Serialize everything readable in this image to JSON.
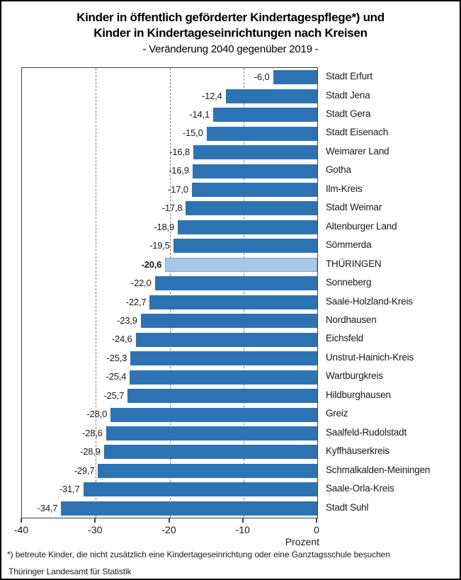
{
  "title": {
    "line1": "Kinder in öffentlich geförderter Kindertagespflege*) und",
    "line2": "Kinder in Kindertageseinrichtungen nach Kreisen",
    "subtitle": "- Veränderung 2040 gegenüber 2019 -"
  },
  "chart_data": {
    "type": "bar",
    "orientation": "horizontal",
    "title": "Kinder in öffentlich geförderter Kindertagespflege*) und Kinder in Kindertageseinrichtungen nach Kreisen",
    "subtitle": "- Veränderung 2040 gegenüber 2019 -",
    "xlabel": "Prozent",
    "xlim": [
      -40,
      0
    ],
    "xticks": [
      -40,
      -30,
      -20,
      -10,
      0
    ],
    "xtick_labels": [
      "-40",
      "-30",
      "-20",
      "-10",
      "0"
    ],
    "gridlines": [
      -30,
      -20,
      -10
    ],
    "grid_style": "dashed",
    "legend": "none",
    "categories": [
      "Stadt Erfurt",
      "Stadt Jena",
      "Stadt Gera",
      "Stadt Eisenach",
      "Weimarer Land",
      "Gotha",
      "Ilm-Kreis",
      "Stadt Weimar",
      "Altenburger Land",
      "Sömmerda",
      "THÜRINGEN",
      "Sonneberg",
      "Saale-Holzland-Kreis",
      "Nordhausen",
      "Eichsfeld",
      "Unstrut-Hainich-Kreis",
      "Wartburgkreis",
      "Hildburghausen",
      "Greiz",
      "Saalfeld-Rudolstadt",
      "Kyffhäuserkreis",
      "Schmalkalden-Meiningen",
      "Saale-Orla-Kreis",
      "Stadt Suhl"
    ],
    "values": [
      -6.0,
      -12.4,
      -14.1,
      -15.0,
      -16.8,
      -16.9,
      -17.0,
      -17.8,
      -18.9,
      -19.5,
      -20.6,
      -22.0,
      -22.7,
      -23.9,
      -24.6,
      -25.3,
      -25.4,
      -25.7,
      -28.0,
      -28.6,
      -28.9,
      -29.7,
      -31.7,
      -34.7
    ],
    "value_labels": [
      "-6,0",
      "-12,4",
      "-14,1",
      "-15,0",
      "-16,8",
      "-16,9",
      "-17,0",
      "-17,8",
      "-18,9",
      "-19,5",
      "-20,6",
      "-22,0",
      "-22,7",
      "-23,9",
      "-24,6",
      "-25,3",
      "-25,4",
      "-25,7",
      "-28,0",
      "-28,6",
      "-28,9",
      "-29,7",
      "-31,7",
      "-34,7"
    ],
    "highlight_category": "THÜRINGEN",
    "colors": {
      "bar": "#2d73b4",
      "highlight_bar": "#a8c8e6",
      "highlight_border": "#7da7d8",
      "frame": "#404040",
      "gridline": "#7f7f7f",
      "text": "#1a1a1a"
    }
  },
  "footnote": "*) betreute Kinder, die nicht zusätzlich eine Kindertageseinrichtung oder eine Ganztagsschule besuchen",
  "source": "Thüringer Landesamt für Statistik"
}
